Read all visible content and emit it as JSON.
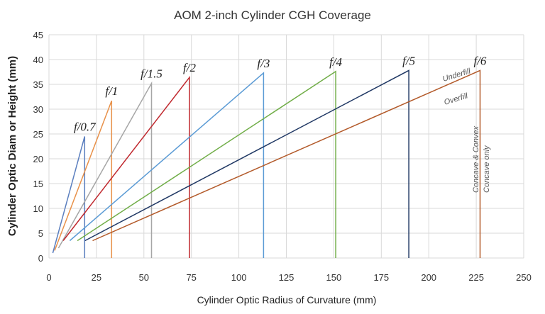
{
  "chart_data": {
    "type": "line",
    "title": "AOM 2-inch Cylinder CGH Coverage",
    "xlabel": "Cylinder Optic Radius of Curvature (mm)",
    "ylabel": "Cylinder Optic Diam or Height (mm)",
    "xlim": [
      0,
      250
    ],
    "ylim": [
      0,
      45
    ],
    "xticks": [
      "0",
      "25",
      "50",
      "75",
      "100",
      "125",
      "150",
      "175",
      "200",
      "225",
      "250"
    ],
    "yticks": [
      "0",
      "5",
      "10",
      "15",
      "20",
      "25",
      "30",
      "35",
      "40",
      "45"
    ],
    "grid": true,
    "series": [
      {
        "name": "f/0.7",
        "color": "#5b7fbf",
        "points": [
          [
            2,
            1
          ],
          [
            18.8,
            24.5
          ],
          [
            18.8,
            0
          ]
        ]
      },
      {
        "name": "f/1",
        "color": "#e8914a",
        "points": [
          [
            3,
            1.5
          ],
          [
            33,
            31.7
          ],
          [
            33,
            0
          ]
        ]
      },
      {
        "name": "f/1.5",
        "color": "#a6a6a6",
        "points": [
          [
            5,
            2
          ],
          [
            54,
            35.2
          ],
          [
            54,
            0
          ]
        ]
      },
      {
        "name": "f/2",
        "color": "#c0282e",
        "points": [
          [
            7.5,
            3.5
          ],
          [
            74,
            36.4
          ],
          [
            74,
            0
          ]
        ]
      },
      {
        "name": "f/3",
        "color": "#5b9bd5",
        "points": [
          [
            11,
            3.5
          ],
          [
            113,
            37.3
          ],
          [
            113,
            0
          ]
        ]
      },
      {
        "name": "f/4",
        "color": "#70ad47",
        "points": [
          [
            15,
            3.5
          ],
          [
            151,
            37.6
          ],
          [
            151,
            0
          ]
        ]
      },
      {
        "name": "f/5",
        "color": "#203864",
        "points": [
          [
            19,
            3.5
          ],
          [
            189.5,
            37.8
          ],
          [
            189.5,
            0
          ]
        ]
      },
      {
        "name": "f/6",
        "color": "#b35a2a",
        "points": [
          [
            23,
            3.5
          ],
          [
            227,
            37.8
          ],
          [
            227,
            0
          ]
        ]
      }
    ],
    "annotations": {
      "underfill": "Underfill",
      "overfill": "Overfill",
      "concave_convex": "Concave & Convex",
      "concave_only": "Concave only"
    }
  }
}
